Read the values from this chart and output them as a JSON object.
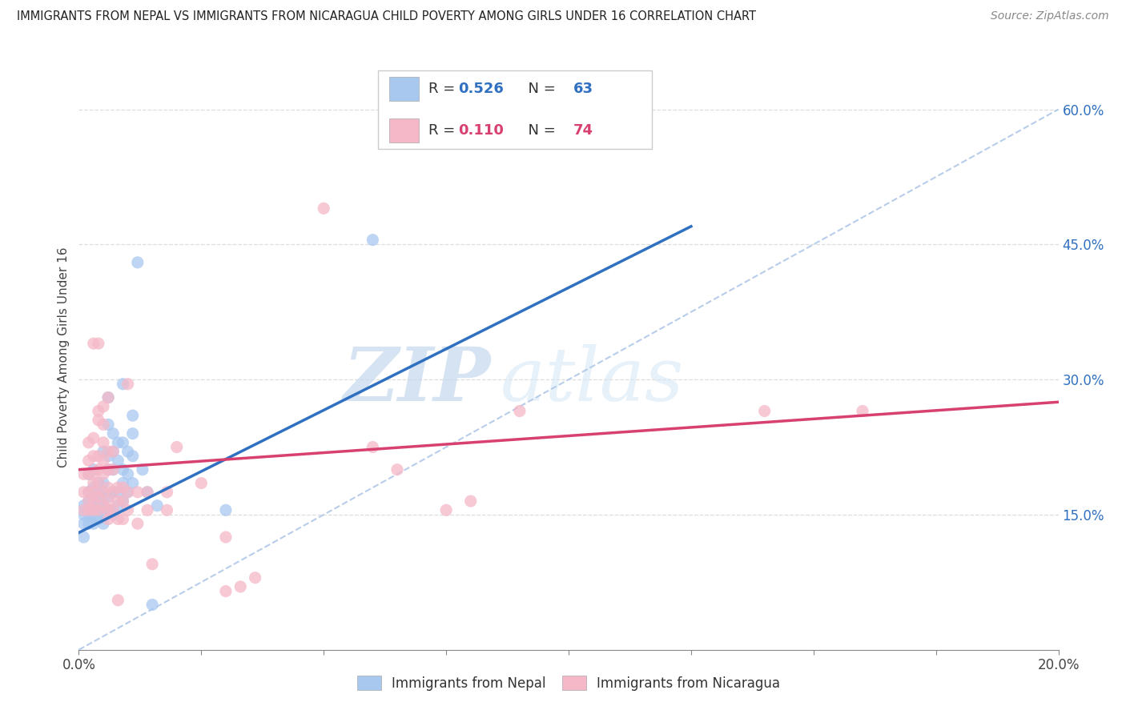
{
  "title": "IMMIGRANTS FROM NEPAL VS IMMIGRANTS FROM NICARAGUA CHILD POVERTY AMONG GIRLS UNDER 16 CORRELATION CHART",
  "source": "Source: ZipAtlas.com",
  "ylabel": "Child Poverty Among Girls Under 16",
  "xlim": [
    0.0,
    0.2
  ],
  "ylim": [
    0.0,
    0.65
  ],
  "x_ticks": [
    0.0,
    0.025,
    0.05,
    0.075,
    0.1,
    0.125,
    0.15,
    0.175,
    0.2
  ],
  "x_tick_labels": [
    "0.0%",
    "",
    "",
    "",
    "",
    "",
    "",
    "",
    "20.0%"
  ],
  "y_ticks_right": [
    0.15,
    0.3,
    0.45,
    0.6
  ],
  "y_tick_labels_right": [
    "15.0%",
    "30.0%",
    "45.0%",
    "60.0%"
  ],
  "nepal_color": "#a8c8f0",
  "nicaragua_color": "#f5b8c8",
  "nepal_line_color": "#3070c0",
  "nicaragua_line_color": "#d84070",
  "diagonal_color": "#b0c8e8",
  "R_nepal": 0.526,
  "N_nepal": 63,
  "R_nicaragua": 0.11,
  "N_nicaragua": 74,
  "nepal_scatter": [
    [
      0.001,
      0.125
    ],
    [
      0.001,
      0.14
    ],
    [
      0.001,
      0.15
    ],
    [
      0.001,
      0.16
    ],
    [
      0.002,
      0.14
    ],
    [
      0.002,
      0.15
    ],
    [
      0.002,
      0.155
    ],
    [
      0.002,
      0.165
    ],
    [
      0.002,
      0.175
    ],
    [
      0.002,
      0.195
    ],
    [
      0.003,
      0.14
    ],
    [
      0.003,
      0.148
    ],
    [
      0.003,
      0.155
    ],
    [
      0.003,
      0.16
    ],
    [
      0.003,
      0.17
    ],
    [
      0.003,
      0.18
    ],
    [
      0.003,
      0.2
    ],
    [
      0.004,
      0.145
    ],
    [
      0.004,
      0.155
    ],
    [
      0.004,
      0.16
    ],
    [
      0.004,
      0.165
    ],
    [
      0.004,
      0.175
    ],
    [
      0.004,
      0.185
    ],
    [
      0.005,
      0.14
    ],
    [
      0.005,
      0.15
    ],
    [
      0.005,
      0.16
    ],
    [
      0.005,
      0.175
    ],
    [
      0.005,
      0.185
    ],
    [
      0.005,
      0.22
    ],
    [
      0.006,
      0.155
    ],
    [
      0.006,
      0.17
    ],
    [
      0.006,
      0.2
    ],
    [
      0.006,
      0.215
    ],
    [
      0.006,
      0.25
    ],
    [
      0.006,
      0.28
    ],
    [
      0.007,
      0.15
    ],
    [
      0.007,
      0.175
    ],
    [
      0.007,
      0.2
    ],
    [
      0.007,
      0.22
    ],
    [
      0.007,
      0.24
    ],
    [
      0.008,
      0.16
    ],
    [
      0.008,
      0.175
    ],
    [
      0.008,
      0.21
    ],
    [
      0.008,
      0.23
    ],
    [
      0.009,
      0.165
    ],
    [
      0.009,
      0.185
    ],
    [
      0.009,
      0.2
    ],
    [
      0.009,
      0.23
    ],
    [
      0.009,
      0.295
    ],
    [
      0.01,
      0.175
    ],
    [
      0.01,
      0.195
    ],
    [
      0.01,
      0.22
    ],
    [
      0.011,
      0.185
    ],
    [
      0.011,
      0.215
    ],
    [
      0.011,
      0.24
    ],
    [
      0.011,
      0.26
    ],
    [
      0.012,
      0.43
    ],
    [
      0.013,
      0.2
    ],
    [
      0.014,
      0.175
    ],
    [
      0.015,
      0.05
    ],
    [
      0.016,
      0.16
    ],
    [
      0.03,
      0.155
    ],
    [
      0.06,
      0.455
    ]
  ],
  "nicaragua_scatter": [
    [
      0.001,
      0.155
    ],
    [
      0.001,
      0.175
    ],
    [
      0.001,
      0.195
    ],
    [
      0.002,
      0.155
    ],
    [
      0.002,
      0.165
    ],
    [
      0.002,
      0.175
    ],
    [
      0.002,
      0.195
    ],
    [
      0.002,
      0.21
    ],
    [
      0.002,
      0.23
    ],
    [
      0.003,
      0.155
    ],
    [
      0.003,
      0.165
    ],
    [
      0.003,
      0.175
    ],
    [
      0.003,
      0.185
    ],
    [
      0.003,
      0.195
    ],
    [
      0.003,
      0.215
    ],
    [
      0.003,
      0.235
    ],
    [
      0.003,
      0.34
    ],
    [
      0.004,
      0.155
    ],
    [
      0.004,
      0.17
    ],
    [
      0.004,
      0.185
    ],
    [
      0.004,
      0.2
    ],
    [
      0.004,
      0.215
    ],
    [
      0.004,
      0.255
    ],
    [
      0.004,
      0.265
    ],
    [
      0.004,
      0.34
    ],
    [
      0.005,
      0.16
    ],
    [
      0.005,
      0.175
    ],
    [
      0.005,
      0.195
    ],
    [
      0.005,
      0.21
    ],
    [
      0.005,
      0.23
    ],
    [
      0.005,
      0.25
    ],
    [
      0.005,
      0.27
    ],
    [
      0.006,
      0.145
    ],
    [
      0.006,
      0.155
    ],
    [
      0.006,
      0.165
    ],
    [
      0.006,
      0.18
    ],
    [
      0.006,
      0.2
    ],
    [
      0.006,
      0.22
    ],
    [
      0.006,
      0.28
    ],
    [
      0.007,
      0.155
    ],
    [
      0.007,
      0.175
    ],
    [
      0.007,
      0.2
    ],
    [
      0.007,
      0.22
    ],
    [
      0.008,
      0.055
    ],
    [
      0.008,
      0.145
    ],
    [
      0.008,
      0.165
    ],
    [
      0.008,
      0.18
    ],
    [
      0.009,
      0.145
    ],
    [
      0.009,
      0.165
    ],
    [
      0.009,
      0.18
    ],
    [
      0.01,
      0.155
    ],
    [
      0.01,
      0.175
    ],
    [
      0.01,
      0.295
    ],
    [
      0.012,
      0.14
    ],
    [
      0.012,
      0.175
    ],
    [
      0.014,
      0.155
    ],
    [
      0.014,
      0.175
    ],
    [
      0.015,
      0.095
    ],
    [
      0.018,
      0.155
    ],
    [
      0.018,
      0.175
    ],
    [
      0.02,
      0.225
    ],
    [
      0.025,
      0.185
    ],
    [
      0.03,
      0.065
    ],
    [
      0.03,
      0.125
    ],
    [
      0.033,
      0.07
    ],
    [
      0.036,
      0.08
    ],
    [
      0.05,
      0.49
    ],
    [
      0.06,
      0.225
    ],
    [
      0.065,
      0.2
    ],
    [
      0.075,
      0.155
    ],
    [
      0.08,
      0.165
    ],
    [
      0.09,
      0.265
    ],
    [
      0.14,
      0.265
    ],
    [
      0.16,
      0.265
    ]
  ],
  "nepal_trendline": [
    [
      0.0,
      0.13
    ],
    [
      0.125,
      0.47
    ]
  ],
  "nicaragua_trendline": [
    [
      0.0,
      0.2
    ],
    [
      0.2,
      0.275
    ]
  ],
  "diagonal_line": [
    [
      0.0,
      0.0
    ],
    [
      0.2,
      0.6
    ]
  ],
  "watermark_zip": "ZIP",
  "watermark_atlas": "atlas",
  "background_color": "#ffffff",
  "grid_color": "#dddddd"
}
